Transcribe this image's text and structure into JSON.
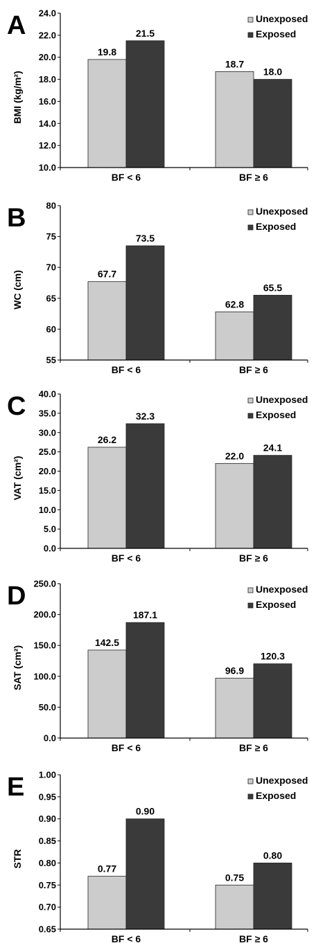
{
  "colors": {
    "unexposed": "#cccccc",
    "exposed": "#3a3a3a",
    "axis": "#000000"
  },
  "chart_data": [
    {
      "type": "bar",
      "panel": "A",
      "ylabel": "BMI (kg/m²)",
      "categories": [
        "BF < 6",
        "BF ≥ 6"
      ],
      "series": [
        {
          "name": "Unexposed",
          "values": [
            19.8,
            18.7
          ],
          "labels": [
            "19.8",
            "18.7"
          ]
        },
        {
          "name": "Exposed",
          "values": [
            21.5,
            18.0
          ],
          "labels": [
            "21.5",
            "18.0"
          ]
        }
      ],
      "ylim": [
        10.0,
        24.0
      ],
      "yticks": [
        "10.0",
        "12.0",
        "14.0",
        "16.0",
        "18.0",
        "20.0",
        "22.0",
        "24.0"
      ],
      "legend": "top-right",
      "grid": false
    },
    {
      "type": "bar",
      "panel": "B",
      "ylabel": "WC (cm)",
      "categories": [
        "BF < 6",
        "BF ≥ 6"
      ],
      "series": [
        {
          "name": "Unexposed",
          "values": [
            67.7,
            62.8
          ],
          "labels": [
            "67.7",
            "62.8"
          ]
        },
        {
          "name": "Exposed",
          "values": [
            73.5,
            65.5
          ],
          "labels": [
            "73.5",
            "65.5"
          ]
        }
      ],
      "ylim": [
        55,
        80
      ],
      "yticks": [
        "55",
        "60",
        "65",
        "70",
        "75",
        "80"
      ],
      "legend": "top-right",
      "grid": false
    },
    {
      "type": "bar",
      "panel": "C",
      "ylabel": "VAT (cm²)",
      "categories": [
        "BF < 6",
        "BF ≥ 6"
      ],
      "series": [
        {
          "name": "Unexposed",
          "values": [
            26.2,
            22.0
          ],
          "labels": [
            "26.2",
            "22.0"
          ]
        },
        {
          "name": "Exposed",
          "values": [
            32.3,
            24.1
          ],
          "labels": [
            "32.3",
            "24.1"
          ]
        }
      ],
      "ylim": [
        0,
        40
      ],
      "yticks": [
        "0.0",
        "5.0",
        "10.0",
        "15.0",
        "20.0",
        "25.0",
        "30.0",
        "35.0",
        "40.0"
      ],
      "legend": "top-right",
      "grid": false
    },
    {
      "type": "bar",
      "panel": "D",
      "ylabel": "SAT (cm²)",
      "categories": [
        "BF < 6",
        "BF ≥ 6"
      ],
      "series": [
        {
          "name": "Unexposed",
          "values": [
            142.5,
            96.9
          ],
          "labels": [
            "142.5",
            "96.9"
          ]
        },
        {
          "name": "Exposed",
          "values": [
            187.1,
            120.3
          ],
          "labels": [
            "187.1",
            "120.3"
          ]
        }
      ],
      "ylim": [
        0,
        250
      ],
      "yticks": [
        "0.0",
        "50.0",
        "100.0",
        "150.0",
        "200.0",
        "250.0"
      ],
      "legend": "top-right",
      "grid": false
    },
    {
      "type": "bar",
      "panel": "E",
      "ylabel": "STR",
      "categories": [
        "BF < 6",
        "BF ≥ 6"
      ],
      "series": [
        {
          "name": "Unexposed",
          "values": [
            0.77,
            0.75
          ],
          "labels": [
            "0.77",
            "0.75"
          ]
        },
        {
          "name": "Exposed",
          "values": [
            0.9,
            0.8
          ],
          "labels": [
            "0.90",
            "0.80"
          ]
        }
      ],
      "ylim": [
        0.65,
        1.0
      ],
      "yticks": [
        "0.65",
        "0.70",
        "0.75",
        "0.80",
        "0.85",
        "0.90",
        "0.95",
        "1.00"
      ],
      "legend": "top-right",
      "grid": false
    }
  ]
}
